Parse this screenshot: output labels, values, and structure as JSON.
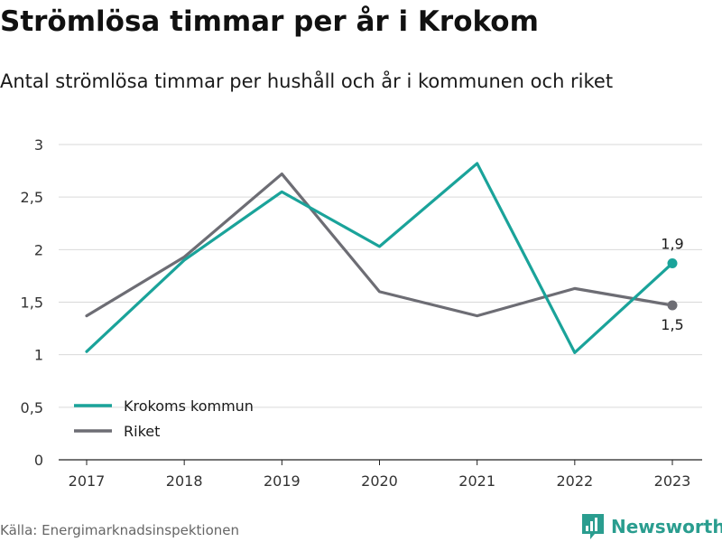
{
  "header": {
    "title": "Strömlösa timmar per år i Krokom",
    "subtitle": "Antal strömlösa timmar per hushåll och år i kommunen och riket"
  },
  "footer": {
    "source": "Källa: Energimarknadsinspektionen",
    "brand": "Newsworthy",
    "brand_icon": "newsworthy-logo-icon"
  },
  "colors": {
    "accent": "#1aa39a",
    "secondary": "#6d6d74",
    "grid": "#d9d9d9",
    "brand": "#2a9d8f"
  },
  "chart_data": {
    "type": "line",
    "title": "Strömlösa timmar per år i Krokom",
    "subtitle": "Antal strömlösa timmar per hushåll och år i kommunen och riket",
    "categories": [
      "2017",
      "2018",
      "2019",
      "2020",
      "2021",
      "2022",
      "2023"
    ],
    "y_ticks": [
      0,
      0.5,
      1,
      1.5,
      2,
      2.5,
      3
    ],
    "y_tick_labels": [
      "0",
      "0,5",
      "1",
      "1,5",
      "2",
      "2,5",
      "3"
    ],
    "ylim": [
      0,
      3
    ],
    "grid": true,
    "legend_position": "bottom-left",
    "series": [
      {
        "name": "Krokoms kommun",
        "color": "#1aa39a",
        "values": [
          1.03,
          1.9,
          2.55,
          2.03,
          2.82,
          1.02,
          1.87
        ],
        "end_label": "1,9",
        "end_label_position": "above"
      },
      {
        "name": "Riket",
        "color": "#6d6d74",
        "values": [
          1.37,
          1.93,
          2.72,
          1.6,
          1.37,
          1.63,
          1.47
        ],
        "end_label": "1,5",
        "end_label_position": "below"
      }
    ]
  }
}
